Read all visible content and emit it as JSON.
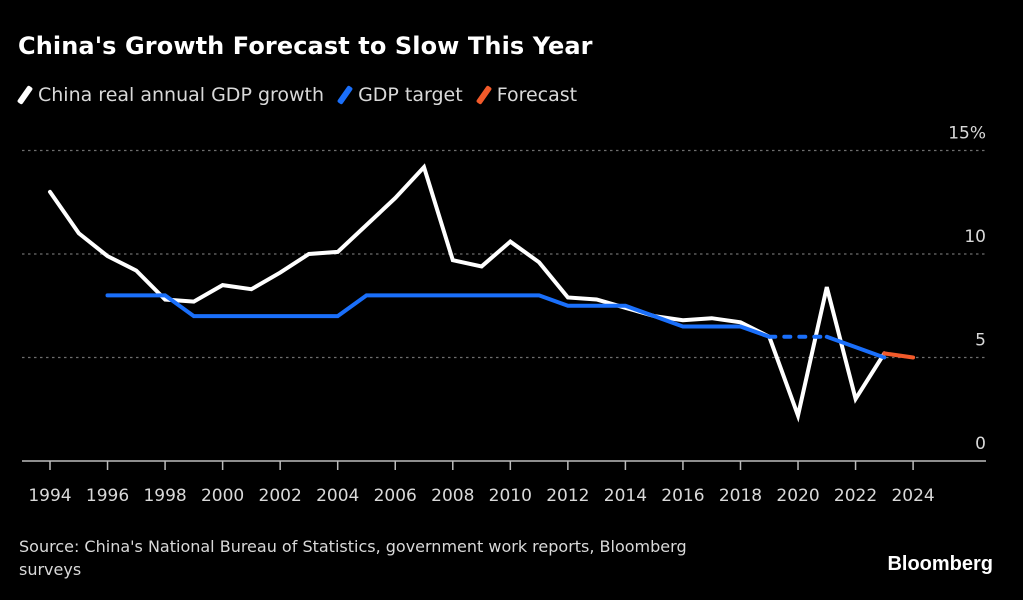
{
  "chart_data": {
    "type": "line",
    "title": "China's Growth Forecast to Slow This Year",
    "xlabel": "",
    "ylabel": "",
    "ylim": [
      0,
      15
    ],
    "xlim": [
      1994,
      2026
    ],
    "y_ticks": [
      {
        "value": 15,
        "label": "15%"
      },
      {
        "value": 10,
        "label": "10"
      },
      {
        "value": 5,
        "label": "5"
      },
      {
        "value": 0,
        "label": "0"
      }
    ],
    "x_ticks": [
      1994,
      1996,
      1998,
      2000,
      2002,
      2004,
      2006,
      2008,
      2010,
      2012,
      2014,
      2016,
      2018,
      2020,
      2022,
      2024
    ],
    "grid": "horizontal-dotted",
    "legend_position": "top-left",
    "series": [
      {
        "name": "China real annual GDP growth",
        "color": "#ffffff",
        "style": "solid",
        "x": [
          1994,
          1995,
          1996,
          1997,
          1998,
          1999,
          2000,
          2001,
          2002,
          2003,
          2004,
          2005,
          2006,
          2007,
          2008,
          2009,
          2010,
          2011,
          2012,
          2013,
          2014,
          2015,
          2016,
          2017,
          2018,
          2019,
          2020,
          2021,
          2022,
          2023
        ],
        "values": [
          13.0,
          11.0,
          9.9,
          9.2,
          7.8,
          7.7,
          8.5,
          8.3,
          9.1,
          10.0,
          10.1,
          11.4,
          12.7,
          14.2,
          9.7,
          9.4,
          10.6,
          9.6,
          7.9,
          7.8,
          7.4,
          7.0,
          6.8,
          6.9,
          6.7,
          6.0,
          2.2,
          8.4,
          3.0,
          5.2
        ]
      },
      {
        "name": "GDP target",
        "color": "#1a6ffa",
        "style": "solid",
        "x": [
          1996,
          1997,
          1998,
          1999,
          2000,
          2001,
          2002,
          2003,
          2004,
          2005,
          2006,
          2007,
          2008,
          2009,
          2010,
          2011,
          2012,
          2013,
          2014,
          2015,
          2016,
          2017,
          2018,
          2019
        ],
        "values": [
          8.0,
          8.0,
          8.0,
          7.0,
          7.0,
          7.0,
          7.0,
          7.0,
          7.0,
          8.0,
          8.0,
          8.0,
          8.0,
          8.0,
          8.0,
          8.0,
          7.5,
          7.5,
          7.5,
          7.0,
          6.5,
          6.5,
          6.5,
          6.0
        ]
      },
      {
        "name": "GDP target (no target set)",
        "color": "#1a6ffa",
        "style": "dashed",
        "legend": false,
        "x": [
          2019,
          2020,
          2021
        ],
        "values": [
          6.0,
          6.0,
          6.0
        ]
      },
      {
        "name": "GDP target (resumed)",
        "color": "#1a6ffa",
        "style": "solid",
        "legend": false,
        "x": [
          2021,
          2022,
          2023
        ],
        "values": [
          6.0,
          5.5,
          5.0
        ]
      },
      {
        "name": "Forecast",
        "color": "#f25a2a",
        "style": "solid",
        "x": [
          2023,
          2024
        ],
        "values": [
          5.2,
          5.0
        ]
      }
    ]
  },
  "legend": [
    {
      "label": "China real annual GDP growth",
      "color": "#ffffff"
    },
    {
      "label": "GDP target",
      "color": "#1a6ffa"
    },
    {
      "label": "Forecast",
      "color": "#f25a2a"
    }
  ],
  "source": "Source: China's National Bureau of Statistics, government work reports, Bloomberg surveys",
  "brand": "Bloomberg"
}
